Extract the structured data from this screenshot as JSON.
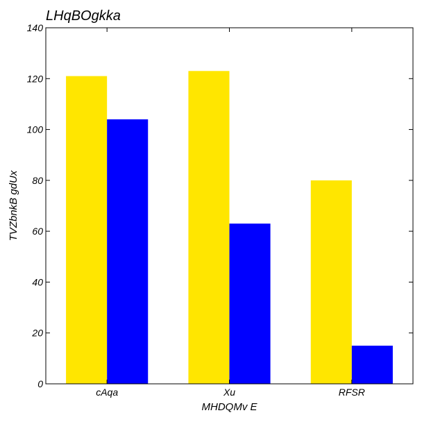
{
  "chart_data": {
    "type": "bar",
    "title": "LHqBOgkka",
    "xlabel": "MHDQMv  E",
    "ylabel": "TVZbnkB gdUx",
    "categories": [
      "cAqa",
      "Xu",
      "RFSR"
    ],
    "series": [
      {
        "values": [
          121,
          123,
          80
        ],
        "color": "#ffe600"
      },
      {
        "values": [
          104,
          63,
          15
        ],
        "color": "#0000ff"
      }
    ],
    "ylim": [
      0,
      140
    ],
    "yticks": [
      0,
      20,
      40,
      60,
      80,
      100,
      120,
      140
    ],
    "grid": false,
    "legend": "none"
  }
}
